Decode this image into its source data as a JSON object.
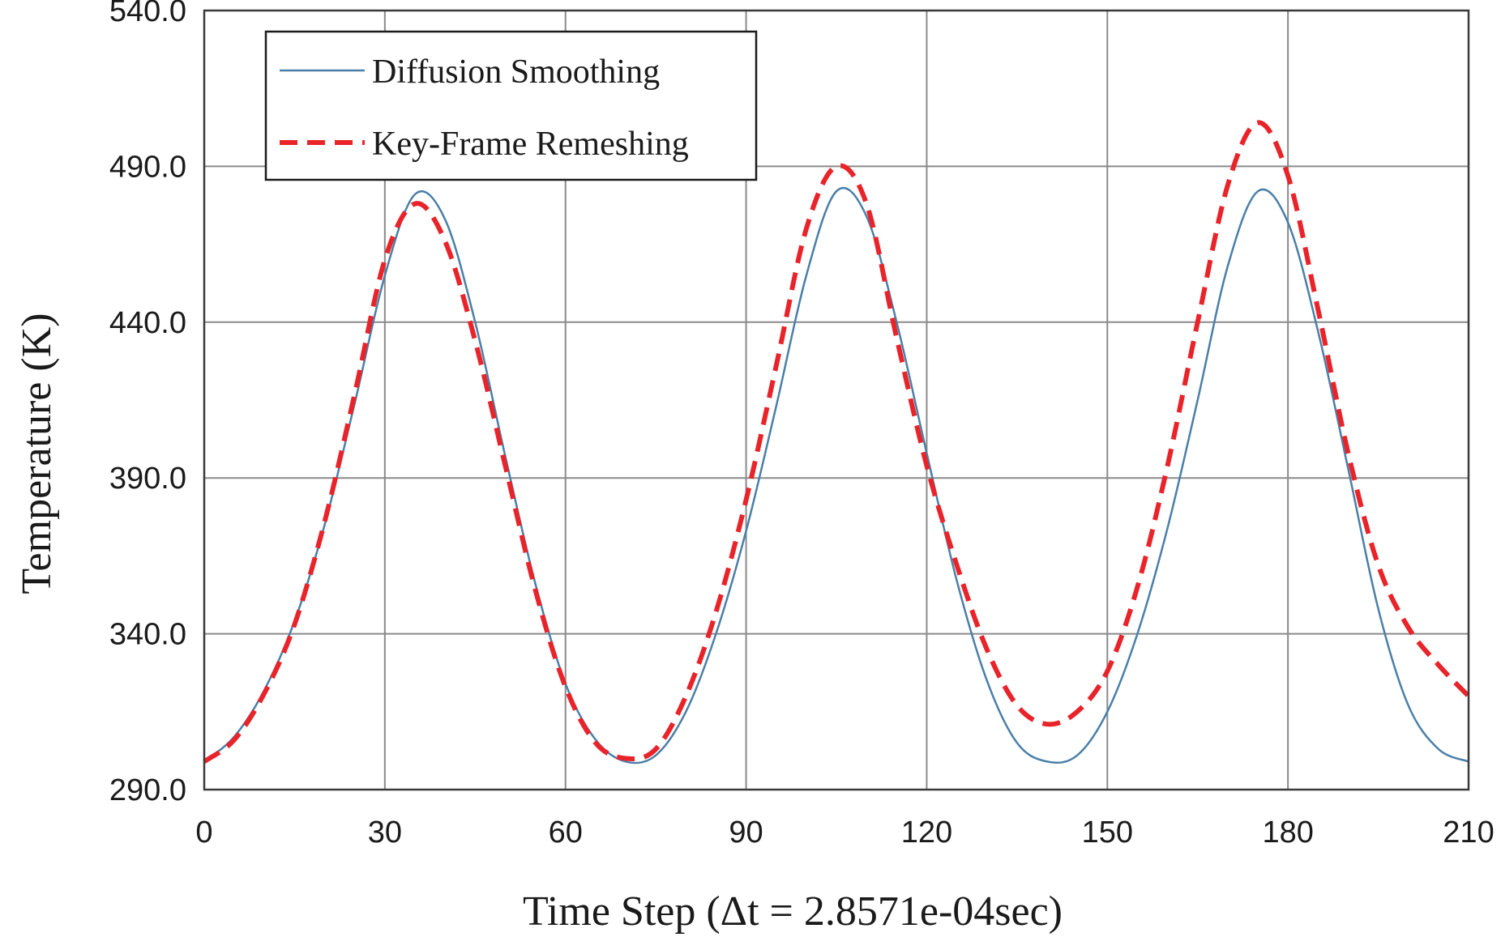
{
  "chart_data": {
    "type": "line",
    "xlabel": "Time Step (Δt = 2.8571e-04sec)",
    "ylabel": "Temperature (K)",
    "xlim": [
      0,
      210
    ],
    "ylim": [
      290,
      540
    ],
    "x_ticks": [
      0,
      30,
      60,
      90,
      120,
      150,
      180,
      210
    ],
    "x_tick_labels": [
      "0",
      "30",
      "60",
      "90",
      "120",
      "150",
      "180",
      "210"
    ],
    "y_ticks": [
      290,
      340,
      390,
      440,
      490,
      540
    ],
    "y_tick_labels": [
      "290.0",
      "340.0",
      "390.0",
      "440.0",
      "490.0",
      "540.0"
    ],
    "grid": true,
    "legend_position": "top-left",
    "series": [
      {
        "name": "Diffusion Smoothing",
        "color": "#4a7fa8",
        "line_style": "solid",
        "x": [
          0,
          5,
          10,
          15,
          20,
          25,
          30,
          35,
          40,
          45,
          50,
          55,
          60,
          65,
          70,
          75,
          80,
          85,
          90,
          95,
          100,
          105,
          110,
          115,
          120,
          125,
          130,
          135,
          140,
          145,
          150,
          155,
          160,
          165,
          170,
          175,
          180,
          185,
          190,
          195,
          200,
          205,
          210
        ],
        "y": [
          299,
          307,
          322,
          344,
          375,
          414,
          455,
          481,
          473,
          440,
          397,
          356,
          324,
          306,
          299,
          301,
          315,
          340,
          373,
          413,
          455,
          482,
          474,
          440,
          398,
          357,
          325,
          305,
          299,
          301,
          315,
          340,
          374,
          415,
          458,
          482,
          472,
          437,
          393,
          348,
          317,
          303,
          299
        ]
      },
      {
        "name": "Key-Frame Remeshing",
        "color": "#e8242a",
        "line_style": "dashed",
        "x": [
          0,
          5,
          10,
          15,
          20,
          25,
          30,
          35,
          40,
          45,
          50,
          55,
          60,
          65,
          70,
          75,
          80,
          85,
          90,
          95,
          100,
          105,
          110,
          115,
          120,
          125,
          130,
          135,
          140,
          145,
          150,
          155,
          160,
          165,
          170,
          175,
          180,
          185,
          190,
          195,
          200,
          205,
          210
        ],
        "y": [
          299,
          306,
          321,
          343,
          376,
          417,
          460,
          478,
          466,
          434,
          394,
          354,
          323,
          305,
          300,
          303,
          320,
          347,
          383,
          426,
          470,
          490,
          478,
          435,
          394,
          362,
          335,
          317,
          311,
          315,
          328,
          355,
          394,
          440,
          484,
          504,
          487,
          444,
          398,
          362,
          342,
          330,
          320
        ]
      }
    ]
  }
}
